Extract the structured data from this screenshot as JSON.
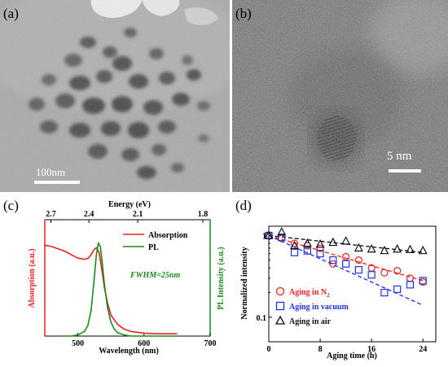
{
  "panel_a": {
    "label": "(a)",
    "scalebar_text": "100nm"
  },
  "panel_b": {
    "label": "(b)",
    "scalebar_text": "5 nm"
  },
  "panel_c": {
    "label": "(c)",
    "top_axis_title": "Energy (eV)",
    "top_ticks": [
      "2.7",
      "2.4",
      "2.1",
      "1.8"
    ],
    "legend_absorption": "Absorption",
    "legend_pl": "PL",
    "fwhm_text": "FWHM=25nm"
  },
  "panel_d": {
    "label": "(d)",
    "legend_n2_prefix": "Aging in N",
    "legend_n2_subscript": "2",
    "legend_vacuum": "Aging in vacuum",
    "legend_air": "Aging in air"
  },
  "colors": {
    "absorption": "#e8201e",
    "pl": "#1a8a1a",
    "n2": "#e8201e",
    "vacuum": "#1f2fe0",
    "air": "#111111"
  },
  "chart_data": [
    {
      "type": "line",
      "xlabel": "Wavelength (nm)",
      "ylabel_left": "Absorption (a.u.)",
      "ylabel_right": "PL Intensity (a.u.)",
      "xlim": [
        450,
        700
      ],
      "xticks": [
        500,
        600,
        700
      ],
      "top_axis": {
        "label": "Energy (eV)",
        "ticks": [
          2.7,
          2.4,
          2.1,
          1.8
        ]
      },
      "annotations": [
        "FWHM=25nm"
      ],
      "series": [
        {
          "name": "Absorption",
          "color": "#e8201e",
          "x": [
            450,
            460,
            470,
            480,
            490,
            500,
            510,
            516,
            520,
            524,
            528,
            532,
            536,
            540,
            545,
            550,
            560,
            570,
            580,
            600,
            620,
            650
          ],
          "y": [
            0.78,
            0.77,
            0.75,
            0.73,
            0.7,
            0.67,
            0.66,
            0.67,
            0.7,
            0.74,
            0.76,
            0.72,
            0.58,
            0.42,
            0.28,
            0.18,
            0.1,
            0.06,
            0.04,
            0.025,
            0.02,
            0.02
          ]
        },
        {
          "name": "PL",
          "color": "#1a8a1a",
          "x": [
            470,
            490,
            500,
            510,
            515,
            520,
            524,
            528,
            531,
            534,
            537,
            540,
            545,
            550,
            555,
            560,
            570,
            580,
            600,
            650
          ],
          "y": [
            0.0,
            0.0,
            0.01,
            0.04,
            0.09,
            0.22,
            0.45,
            0.7,
            0.8,
            0.77,
            0.62,
            0.45,
            0.24,
            0.12,
            0.06,
            0.03,
            0.01,
            0.0,
            0.0,
            0.0
          ]
        }
      ]
    },
    {
      "type": "scatter",
      "xlabel": "Aging time (h)",
      "ylabel": "Normalized intensity",
      "xlim": [
        0,
        26
      ],
      "ylim": [
        0.05,
        1.3
      ],
      "yscale": "log",
      "xticks": [
        0,
        8,
        16,
        24
      ],
      "yticks": [
        0.1,
        1
      ],
      "series": [
        {
          "name": "Aging in N2",
          "marker": "circle",
          "color": "#e8201e",
          "x": [
            0,
            2,
            4,
            6,
            8,
            10,
            12,
            14,
            16,
            18,
            20,
            22,
            24
          ],
          "y": [
            1.0,
            0.92,
            0.8,
            0.75,
            0.7,
            0.45,
            0.55,
            0.5,
            0.4,
            0.35,
            0.37,
            0.3,
            0.27
          ],
          "trend": {
            "x": [
              0,
              24
            ],
            "y": [
              1.0,
              0.28
            ]
          }
        },
        {
          "name": "Aging in vacuum",
          "marker": "square",
          "color": "#1f2fe0",
          "x": [
            0,
            2,
            4,
            6,
            8,
            10,
            12,
            14,
            16,
            18,
            20,
            22,
            24
          ],
          "y": [
            1.0,
            0.95,
            0.62,
            0.65,
            0.6,
            0.5,
            0.45,
            0.38,
            0.33,
            0.2,
            0.22,
            0.25,
            0.28
          ],
          "trend": {
            "x": [
              0,
              24
            ],
            "y": [
              1.0,
              0.14
            ]
          }
        },
        {
          "name": "Aging in air",
          "marker": "triangle",
          "color": "#111111",
          "x": [
            0,
            2,
            4,
            6,
            8,
            10,
            12,
            14,
            16,
            18,
            20,
            22,
            24
          ],
          "y": [
            1.0,
            1.1,
            0.75,
            0.8,
            0.78,
            0.82,
            0.85,
            0.7,
            0.68,
            0.65,
            0.68,
            0.67,
            0.65
          ],
          "trend": {
            "x": [
              0,
              24
            ],
            "y": [
              1.0,
              0.62
            ]
          }
        }
      ]
    }
  ]
}
